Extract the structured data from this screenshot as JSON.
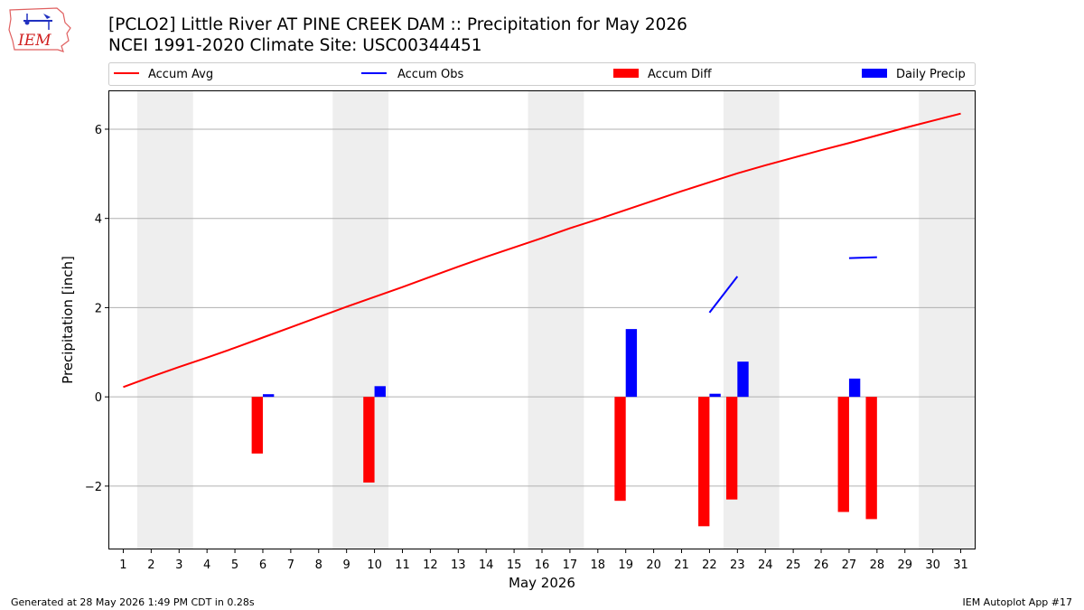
{
  "header": {
    "title_line1": "[PCLO2] Little River  AT PINE CREEK DAM :: Precipitation for May 2026",
    "title_line2": "NCEI 1991-2020 Climate Site: USC00344451",
    "logo_text": "IEM"
  },
  "footer": {
    "left": "Generated at 28 May 2026 1:49 PM CDT in 0.28s",
    "right": "IEM Autoplot App #17"
  },
  "colors": {
    "accum_avg": "#ff0000",
    "accum_obs": "#0000ff",
    "accum_diff": "#ff0000",
    "daily_precip": "#0000ff",
    "weekend_shade": "#eeeeee",
    "grid": "#b0b0b0"
  },
  "chart_data": {
    "type": "bar",
    "xlabel": "May 2026",
    "ylabel": "Precipitation [inch]",
    "xlim": [
      0.5,
      31.5
    ],
    "ylim": [
      -3.4,
      6.85
    ],
    "yticks": [
      -2,
      0,
      2,
      4,
      6
    ],
    "ytick_labels": [
      "−2",
      "0",
      "2",
      "4",
      "6"
    ],
    "days": [
      1,
      2,
      3,
      4,
      5,
      6,
      7,
      8,
      9,
      10,
      11,
      12,
      13,
      14,
      15,
      16,
      17,
      18,
      19,
      20,
      21,
      22,
      23,
      24,
      25,
      26,
      27,
      28,
      29,
      30,
      31
    ],
    "day_labels": [
      "1",
      "2",
      "3",
      "4",
      "5",
      "6",
      "7",
      "8",
      "9",
      "10",
      "11",
      "12",
      "13",
      "14",
      "15",
      "16",
      "17",
      "18",
      "19",
      "20",
      "21",
      "22",
      "23",
      "24",
      "25",
      "26",
      "27",
      "28",
      "29",
      "30",
      "31"
    ],
    "weekend_spans": [
      [
        1.5,
        3.5
      ],
      [
        8.5,
        10.5
      ],
      [
        15.5,
        17.5
      ],
      [
        22.5,
        24.5
      ],
      [
        29.5,
        31.5
      ]
    ],
    "grid": "horizontal",
    "legend_placement": "top, above plot",
    "legend": [
      "Accum Avg",
      "Accum Obs",
      "Accum Diff",
      "Daily Precip"
    ],
    "series": [
      {
        "name": "Accum Avg",
        "kind": "line",
        "x": [
          1,
          2,
          3,
          4,
          5,
          6,
          7,
          8,
          9,
          10,
          11,
          12,
          13,
          14,
          15,
          16,
          17,
          18,
          19,
          20,
          21,
          22,
          23,
          24,
          25,
          26,
          27,
          28,
          29,
          30,
          31
        ],
        "values": [
          0.22,
          0.45,
          0.67,
          0.88,
          1.1,
          1.33,
          1.56,
          1.79,
          2.02,
          2.24,
          2.46,
          2.69,
          2.92,
          3.14,
          3.35,
          3.56,
          3.78,
          3.98,
          4.19,
          4.4,
          4.61,
          4.81,
          5.01,
          5.19,
          5.36,
          5.53,
          5.69,
          5.86,
          6.03,
          6.19,
          6.35
        ]
      },
      {
        "name": "Accum Obs",
        "kind": "line_segments",
        "segments": [
          {
            "x": [
              22,
              23
            ],
            "values": [
              1.89,
              2.7
            ]
          },
          {
            "x": [
              27,
              28
            ],
            "values": [
              3.11,
              3.13
            ]
          }
        ]
      },
      {
        "name": "Accum Diff",
        "kind": "bar",
        "x": [
          6,
          10,
          19,
          22,
          23,
          27,
          28
        ],
        "values": [
          -1.27,
          -1.92,
          -2.33,
          -2.9,
          -2.3,
          -2.58,
          -2.74
        ]
      },
      {
        "name": "Daily Precip",
        "kind": "bar",
        "x": [
          6,
          10,
          19,
          22,
          23,
          27
        ],
        "values": [
          0.06,
          0.24,
          1.52,
          0.07,
          0.79,
          0.41
        ]
      }
    ]
  }
}
